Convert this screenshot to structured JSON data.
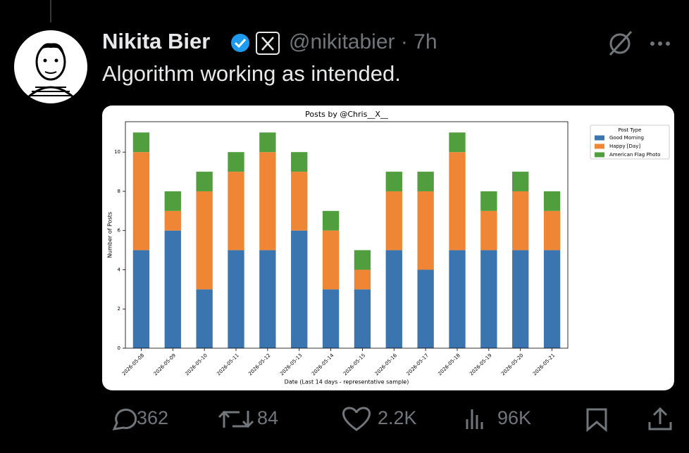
{
  "tweet": {
    "name": "Nikita Bier",
    "handle_line": "@nikitabier · 7h",
    "text": "Algorithm working as intended.",
    "replies": "362",
    "reposts": "84",
    "likes": "2.2K",
    "views": "96K"
  },
  "chart_data": {
    "type": "stacked_bar",
    "title": "Posts by @Chris__X__",
    "x_label": "Date (Last 14 days - representative sample)",
    "y_label": "Number of Posts",
    "categories": [
      "2026-05-08",
      "2026-05-09",
      "2026-05-10",
      "2026-05-11",
      "2026-05-12",
      "2026-05-13",
      "2026-05-14",
      "2026-05-15",
      "2026-05-16",
      "2026-05-17",
      "2026-05-18",
      "2026-05-19",
      "2026-05-20",
      "2026-05-21"
    ],
    "series": [
      {
        "name": "Good Morning",
        "color": "#3b75af",
        "values": [
          5,
          6,
          3,
          5,
          5,
          6,
          3,
          3,
          5,
          4,
          5,
          5,
          5,
          5
        ]
      },
      {
        "name": "Happy [Day]",
        "color": "#ef8636",
        "values": [
          5,
          1,
          5,
          4,
          5,
          3,
          3,
          1,
          3,
          4,
          5,
          2,
          3,
          2
        ]
      },
      {
        "name": "American Flag Photo",
        "color": "#519e3e",
        "values": [
          1,
          1,
          1,
          1,
          1,
          1,
          1,
          1,
          1,
          1,
          1,
          1,
          1,
          1
        ]
      }
    ],
    "legend_title": "Post Type",
    "legend": "outside upper right",
    "ylim": [
      0,
      11.55
    ],
    "yticks": [
      0,
      2,
      4,
      6,
      8,
      10
    ],
    "grid": false
  }
}
